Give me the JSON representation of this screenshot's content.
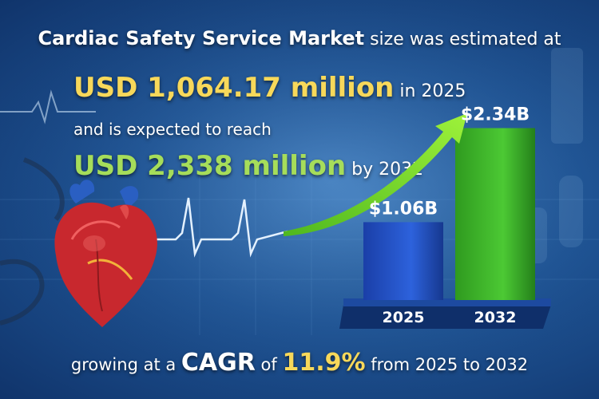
{
  "headline": {
    "line1_bold": "Cardiac Safety Service Market",
    "line1_rest": " size was estimated at",
    "value_2025": "USD 1,064.17 million",
    "value_2025_suffix": " in 2025",
    "line3": "and is expected to reach",
    "value_2032": "USD 2,338 million",
    "value_2032_suffix": " by 2032"
  },
  "footer": {
    "prefix": "growing at a ",
    "cagr_label": "CAGR",
    "of": " of ",
    "cagr_value": "11.9%",
    "suffix": " from 2025 to 2032"
  },
  "colors": {
    "bar_2025": "#1f4fc6",
    "bar_2032": "#3fb82a",
    "arrow": "#7bdb2c",
    "ecg": "#d9ecff",
    "base": "#10306e"
  },
  "icons": [
    "heart-illustration",
    "ecg-line",
    "growth-arrow",
    "stethoscope"
  ],
  "chart_data": {
    "type": "bar",
    "categories": [
      "2025",
      "2032"
    ],
    "values": [
      1.06,
      2.34
    ],
    "data_labels": [
      "$1.06B",
      "$2.34B"
    ],
    "ylim": [
      0,
      2.4
    ],
    "title": "",
    "xlabel": "",
    "ylabel": ""
  }
}
